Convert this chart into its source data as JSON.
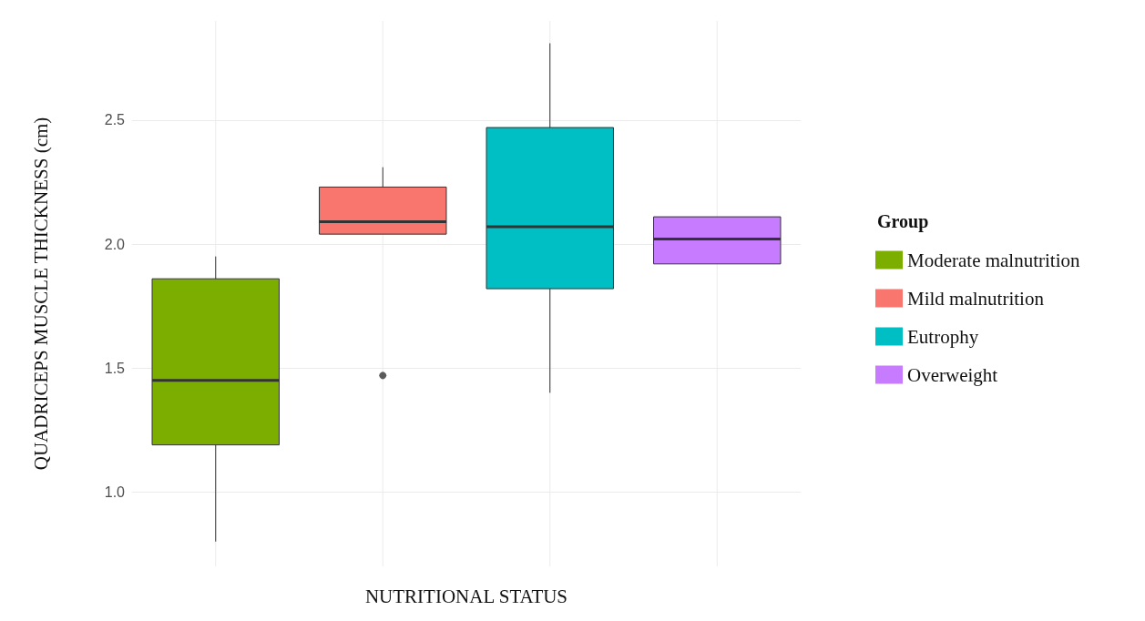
{
  "chart_data": {
    "type": "box",
    "xlabel": "NUTRITIONAL STATUS",
    "ylabel": "QUADRICEPS MUSCLE THICKNESS (cm)",
    "legend_title": "Group",
    "categories": [
      null,
      null,
      null,
      null
    ],
    "ylim": [
      0.7,
      2.9
    ],
    "yticks": [
      {
        "value": 1,
        "label": "1.0"
      },
      1.5,
      {
        "value": 2,
        "label": "2.0"
      },
      2.5
    ],
    "grid": true,
    "legend": "right",
    "series": [
      {
        "name": "Moderate malnutrition",
        "color": "#7cae00",
        "boxes": [
          {
            "low": 0.8,
            "q1": 1.19,
            "median": 1.45,
            "q3": 1.86,
            "high": 1.95
          },
          null,
          null,
          null
        ]
      },
      {
        "name": "Mild malnutrition",
        "color": "#f8766d",
        "boxes": [
          null,
          {
            "low": 2.04,
            "q1": 2.04,
            "median": 2.09,
            "q3": 2.23,
            "high": 2.31,
            "outliers": [
              1.47
            ]
          },
          null,
          null
        ]
      },
      {
        "name": "Eutrophy",
        "color": "#00bfc4",
        "boxes": [
          null,
          null,
          {
            "low": 1.4,
            "q1": 1.82,
            "median": 2.07,
            "q3": 2.47,
            "high": 2.81
          },
          null
        ]
      },
      {
        "name": "Overweight",
        "color": "#c77cff",
        "boxes": [
          null,
          null,
          null,
          {
            "low": 1.92,
            "q1": 1.92,
            "median": 2.02,
            "q3": 2.11,
            "high": 2.11
          }
        ]
      }
    ]
  }
}
